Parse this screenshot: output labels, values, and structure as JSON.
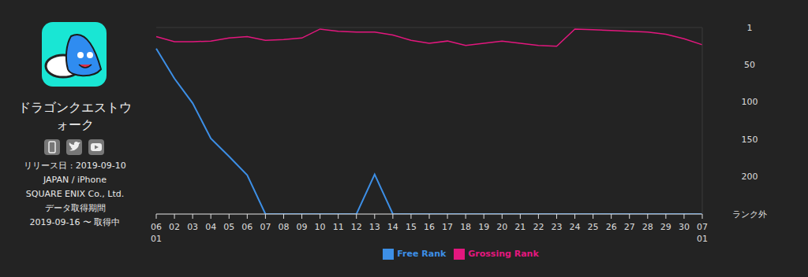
{
  "chart_data": {
    "type": "line",
    "categories": [
      "06\n01",
      "02",
      "03",
      "04",
      "05",
      "06",
      "07",
      "08",
      "09",
      "10",
      "11",
      "12",
      "13",
      "14",
      "15",
      "16",
      "17",
      "18",
      "19",
      "20",
      "21",
      "22",
      "23",
      "24",
      "25",
      "26",
      "27",
      "28",
      "29",
      "30",
      "07\n01"
    ],
    "series": [
      {
        "name": "Grossing Rank",
        "color": "#e3177e",
        "values": [
          13,
          20,
          20,
          19,
          15,
          13,
          18,
          17,
          15,
          3,
          6,
          7,
          7,
          11,
          18,
          22,
          19,
          25,
          22,
          19,
          22,
          25,
          26,
          3,
          4,
          5,
          6,
          7,
          10,
          16,
          24
        ]
      },
      {
        "name": "Free Rank",
        "color": "#3d8fe6",
        "values": [
          29,
          69,
          102,
          149,
          173,
          198,
          250,
          250,
          250,
          250,
          250,
          250,
          197,
          250,
          250,
          250,
          250,
          250,
          250,
          250,
          250,
          250,
          250,
          250,
          250,
          250,
          250,
          250,
          250,
          250,
          250
        ]
      }
    ],
    "ylim": [
      1,
      250
    ],
    "yticks": [
      1,
      50,
      100,
      150,
      200,
      {
        "value": 250,
        "label": "ランク外"
      }
    ],
    "grid": true,
    "legend": "bottom"
  },
  "app_panel": {
    "title": "ドラゴンクエストウォーク",
    "release_date": "リリース日 : 2019-09-10",
    "region": "JAPAN / iPhone",
    "publisher": "SQUARE ENIX Co., Ltd.",
    "data_period_label": "データ取得期間",
    "data_period": "2019-09-16 〜 取得中"
  }
}
